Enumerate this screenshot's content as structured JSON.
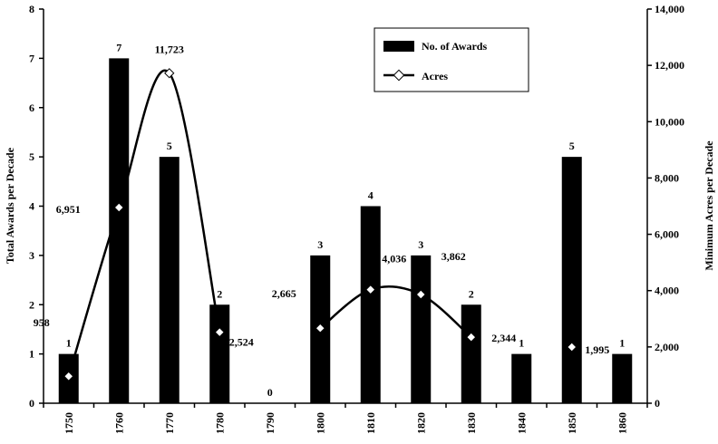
{
  "chart_data": {
    "type": "bar",
    "categories": [
      "1750",
      "1760",
      "1770",
      "1780",
      "1790",
      "1800",
      "1810",
      "1820",
      "1830",
      "1840",
      "1850",
      "1860"
    ],
    "series": [
      {
        "name": "No. of Awards",
        "type": "bar",
        "axis": "left",
        "values": [
          1,
          7,
          5,
          2,
          0,
          3,
          4,
          3,
          2,
          1,
          5,
          1
        ],
        "labels": [
          "1",
          "7",
          "5",
          "2",
          "0",
          "3",
          "4",
          "3",
          "2",
          "1",
          "5",
          "1"
        ]
      },
      {
        "name": "Acres",
        "type": "line",
        "axis": "right",
        "values": [
          958,
          6951,
          11723,
          2524,
          null,
          2665,
          4036,
          3862,
          2344,
          null,
          1995,
          null
        ],
        "labels": [
          "958",
          "6,951",
          "11,723",
          "2,524",
          "",
          "2,665",
          "4,036",
          "3,862",
          "2,344",
          "",
          "1,995",
          ""
        ],
        "line_segments": [
          [
            "1750",
            "1780"
          ],
          [
            "1800",
            "1830"
          ]
        ]
      }
    ],
    "ylabel": "Total Awards per Decade",
    "y2label": "Minimum Acres per Decade",
    "ylim": [
      0,
      8
    ],
    "y2lim": [
      0,
      14000
    ],
    "yticks": [
      "0",
      "1",
      "2",
      "3",
      "4",
      "5",
      "6",
      "7",
      "8"
    ],
    "y2ticks": [
      "0",
      "2,000",
      "4,000",
      "6,000",
      "8,000",
      "10,000",
      "12,000",
      "14,000"
    ],
    "grid": false,
    "legend_position": "top-right",
    "colors": {
      "bar": "#000000",
      "line": "#000000",
      "marker_fill": "#ffffff",
      "background": "#ffffff"
    }
  }
}
